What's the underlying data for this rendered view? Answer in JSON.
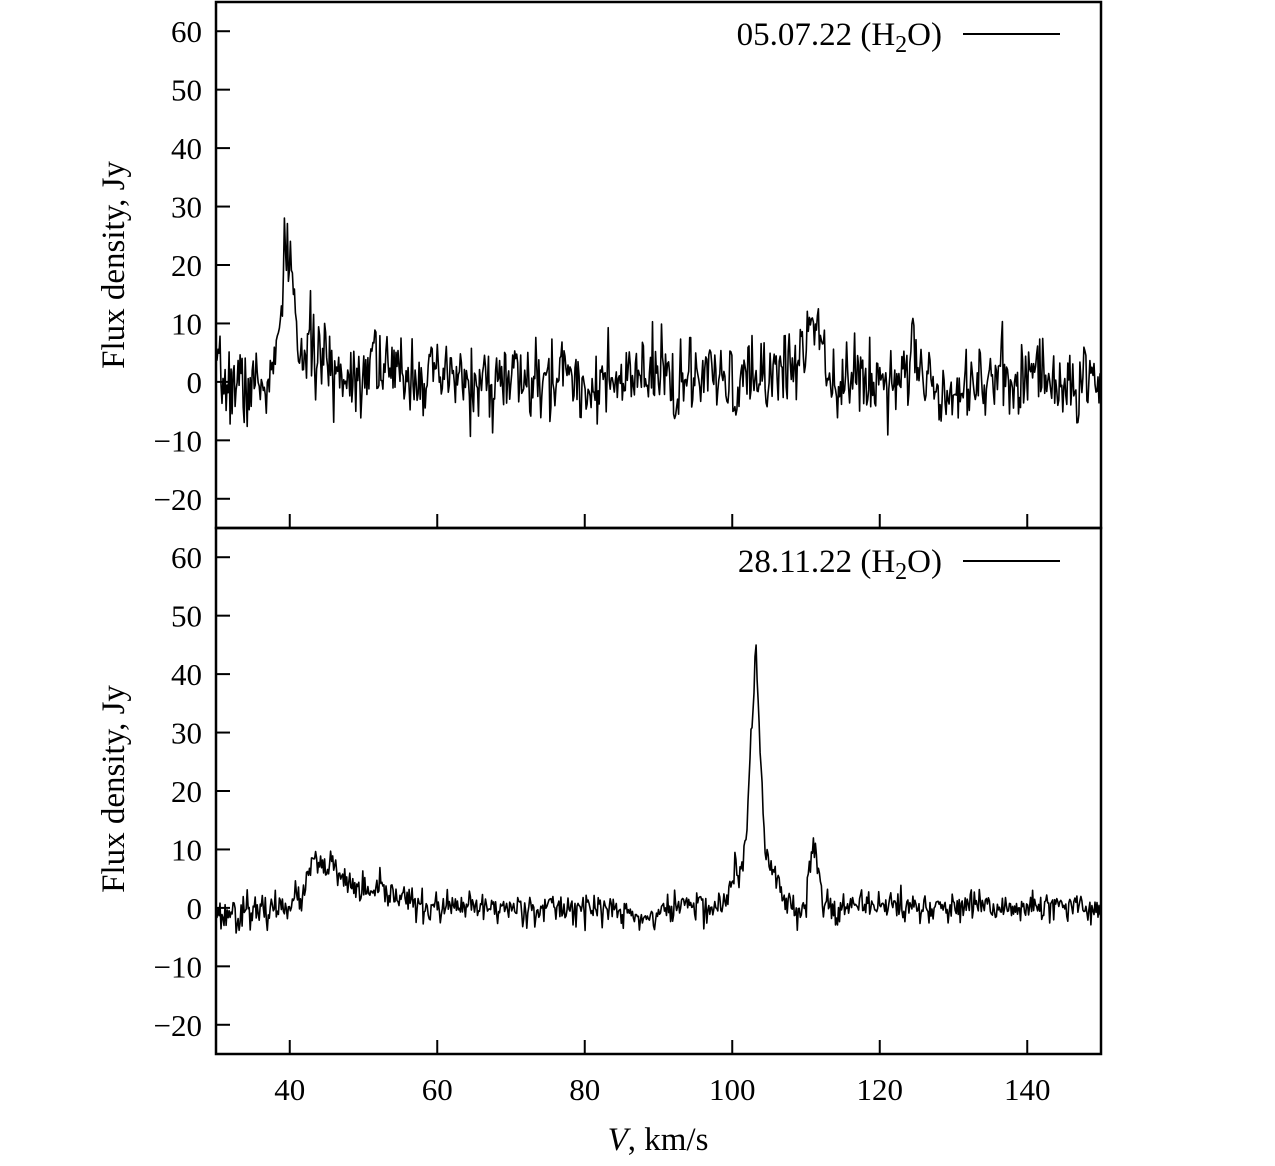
{
  "figure": {
    "xlabel_symbol": "V",
    "xlabel_unit": ", km/s"
  },
  "chart_data": [
    {
      "type": "line",
      "panel": "top",
      "legend": {
        "date": "05.07.22",
        "molecule_open": " (H",
        "subscript": "2",
        "molecule_close": "O)"
      },
      "ylabel": "Flux density, Jy",
      "xlim": [
        30,
        150
      ],
      "ylim": [
        -25,
        65
      ],
      "xticks": [
        40,
        60,
        80,
        100,
        120,
        140
      ],
      "yticks": [
        -20,
        -10,
        0,
        10,
        20,
        30,
        40,
        50,
        60
      ],
      "ytick_labels": [
        "−20",
        "−10",
        "0",
        "10",
        "20",
        "30",
        "40",
        "50",
        "60"
      ],
      "grid": false,
      "legend_position": "top-right",
      "series": [
        {
          "noise_sd": 3.2,
          "seed": 7,
          "x": [
            30,
            31,
            32,
            33,
            34,
            35,
            36,
            37,
            38,
            39,
            39.5,
            40,
            40.5,
            41,
            42,
            43,
            44,
            45,
            46,
            48,
            50,
            51,
            51.5,
            52,
            54,
            56,
            58,
            60,
            62,
            64,
            66,
            68,
            70,
            72,
            74,
            76,
            77.5,
            78,
            80,
            82,
            84,
            86,
            88,
            90,
            90.5,
            92,
            94,
            96,
            98,
            100,
            102,
            104,
            106,
            108,
            110,
            110.6,
            111,
            112,
            113,
            114,
            116,
            118,
            120,
            122,
            124,
            124.7,
            125,
            126,
            128,
            130,
            132,
            134,
            136,
            138,
            140,
            140.5,
            142,
            144,
            146,
            148,
            150
          ],
          "y": [
            1,
            0,
            -1,
            1,
            -2,
            0,
            -1,
            0,
            2,
            14,
            24,
            22,
            15,
            7,
            4,
            6,
            4,
            3,
            2,
            1,
            2,
            4,
            8,
            3,
            1,
            2,
            1,
            0,
            1,
            0,
            -1,
            0,
            1,
            0,
            -1,
            0,
            4,
            1,
            -1,
            0,
            -1,
            0,
            1,
            0,
            4,
            -1,
            0,
            1,
            0,
            -1,
            0,
            1,
            2,
            3,
            5,
            13,
            12,
            8,
            3,
            1,
            0,
            1,
            0,
            1,
            3,
            11,
            2,
            0,
            -1,
            -1,
            0,
            1,
            0,
            1,
            0,
            3,
            1,
            0,
            -1,
            0,
            0
          ]
        }
      ]
    },
    {
      "type": "line",
      "panel": "bottom",
      "legend": {
        "date": "28.11.22",
        "molecule_open": " (H",
        "subscript": "2",
        "molecule_close": "O)"
      },
      "ylabel": "Flux density, Jy",
      "xlim": [
        30,
        150
      ],
      "ylim": [
        -25,
        65
      ],
      "xticks": [
        40,
        60,
        80,
        100,
        120,
        140
      ],
      "xtick_labels": [
        "40",
        "60",
        "80",
        "100",
        "120",
        "140"
      ],
      "yticks": [
        -20,
        -10,
        0,
        10,
        20,
        30,
        40,
        50,
        60
      ],
      "ytick_labels": [
        "−20",
        "−10",
        "0",
        "10",
        "20",
        "30",
        "40",
        "50",
        "60"
      ],
      "grid": false,
      "legend_position": "top-right",
      "series": [
        {
          "noise_sd": 1.3,
          "seed": 23,
          "x": [
            30,
            31,
            32,
            33,
            34,
            35,
            36,
            38,
            40,
            42,
            42.8,
            43.3,
            44,
            45,
            45.6,
            46,
            47,
            48,
            50,
            51,
            52,
            54,
            55.5,
            56,
            58,
            60,
            62,
            64,
            66,
            70,
            74,
            78,
            82,
            86,
            88,
            90,
            92,
            94,
            96,
            98,
            99.5,
            100.5,
            101,
            102,
            102.6,
            103.2,
            103.8,
            104.5,
            105,
            106,
            107,
            108,
            109,
            110,
            110.6,
            111.1,
            111.6,
            112.5,
            114,
            116,
            118,
            120,
            124,
            128,
            132,
            136,
            140,
            144,
            148,
            150
          ],
          "y": [
            0,
            -2,
            0,
            -2,
            1,
            -1,
            -1,
            0,
            1,
            2,
            7,
            9,
            6,
            7,
            8,
            6,
            5,
            4,
            3,
            2,
            3,
            2,
            3,
            1,
            0,
            0,
            0,
            0,
            0,
            0,
            0,
            0,
            0,
            -1,
            -2,
            -1,
            0,
            1,
            0,
            0,
            2,
            7,
            5,
            13,
            30,
            44,
            26,
            10,
            8,
            5,
            2,
            0,
            0,
            1,
            8,
            11,
            6,
            1,
            0,
            0,
            0,
            1,
            0,
            0,
            0,
            0,
            0,
            0,
            0,
            0
          ]
        }
      ]
    }
  ]
}
